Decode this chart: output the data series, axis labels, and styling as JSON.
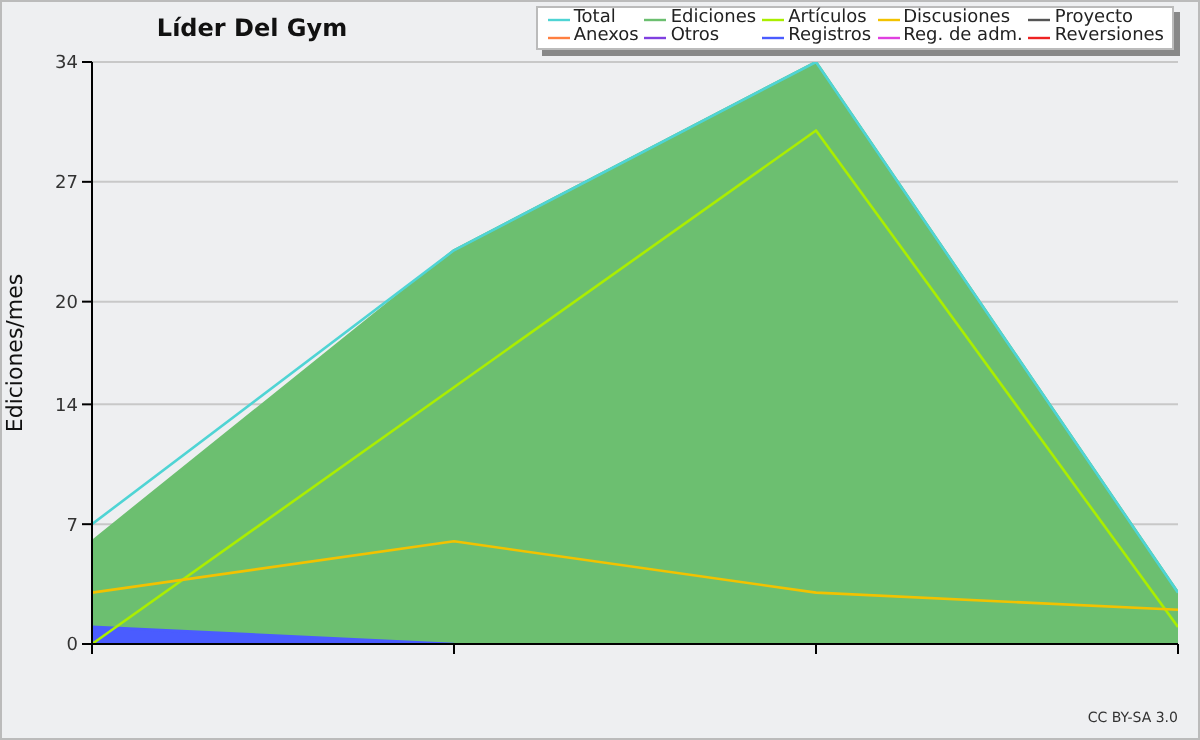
{
  "chart_data": {
    "type": "line",
    "title": "Líder Del Gym",
    "ylabel": "Ediciones/mes",
    "categories": [
      null,
      null,
      null,
      null
    ],
    "series": [
      {
        "name": "Total",
        "color": "#4fd4d4",
        "values": [
          7,
          23,
          34,
          3
        ]
      },
      {
        "name": "Ediciones",
        "type": "area",
        "color": "#6cbf70",
        "values": [
          6,
          23,
          34,
          3
        ]
      },
      {
        "name": "Artículos",
        "color": "#aaee00",
        "values": [
          0,
          15,
          30,
          1
        ]
      },
      {
        "name": "Discusiones",
        "color": "#f2c200",
        "values": [
          3,
          6,
          3,
          2
        ]
      },
      {
        "name": "Proyecto",
        "color": "#555555",
        "values": [
          null,
          null,
          null,
          null
        ]
      },
      {
        "name": "Anexos",
        "color": "#ff7f40",
        "values": [
          null,
          null,
          null,
          null
        ]
      },
      {
        "name": "Otros",
        "color": "#8040e0",
        "values": [
          null,
          null,
          null,
          null
        ]
      },
      {
        "name": "Registros",
        "type": "area",
        "color": "#4a5cff",
        "values": [
          1,
          0,
          null,
          null
        ]
      },
      {
        "name": "Reg. de adm.",
        "color": "#e040e0",
        "values": [
          null,
          null,
          null,
          null
        ]
      },
      {
        "name": "Reversiones",
        "color": "#ee2222",
        "values": [
          null,
          null,
          null,
          null
        ]
      }
    ],
    "ylim": [
      0,
      34
    ],
    "yticks": [
      0,
      7,
      14,
      20,
      27,
      34
    ],
    "grid": "y",
    "legend": "top right",
    "tick_labels": "y",
    "annotations": [
      "CC BY-SA 3.0"
    ]
  }
}
